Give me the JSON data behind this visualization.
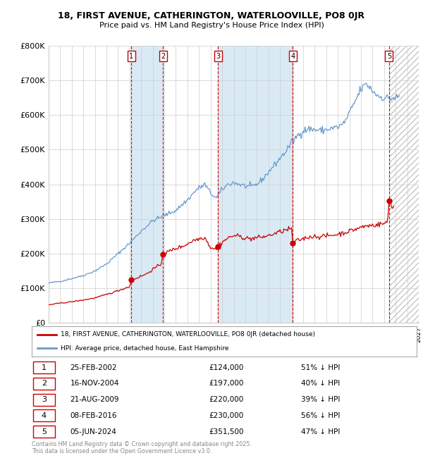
{
  "title_line1": "18, FIRST AVENUE, CATHERINGTON, WATERLOOVILLE, PO8 0JR",
  "title_line2": "Price paid vs. HM Land Registry's House Price Index (HPI)",
  "transactions": [
    {
      "num": 1,
      "date": "25-FEB-2002",
      "date_val": 2002.14,
      "price": 124000,
      "hpi_pct": "51% ↓ HPI"
    },
    {
      "num": 2,
      "date": "16-NOV-2004",
      "date_val": 2004.88,
      "price": 197000,
      "hpi_pct": "40% ↓ HPI"
    },
    {
      "num": 3,
      "date": "21-AUG-2009",
      "date_val": 2009.64,
      "price": 220000,
      "hpi_pct": "39% ↓ HPI"
    },
    {
      "num": 4,
      "date": "08-FEB-2016",
      "date_val": 2016.11,
      "price": 230000,
      "hpi_pct": "56% ↓ HPI"
    },
    {
      "num": 5,
      "date": "05-JUN-2024",
      "date_val": 2024.43,
      "price": 351500,
      "hpi_pct": "47% ↓ HPI"
    }
  ],
  "property_color": "#cc0000",
  "hpi_color": "#6699cc",
  "vline_color": "#cc0000",
  "shade_color": "#daeaf5",
  "xlabel": "",
  "ylabel": "",
  "ylim": [
    0,
    800000
  ],
  "xlim": [
    1995,
    2027
  ],
  "yticks": [
    0,
    100000,
    200000,
    300000,
    400000,
    500000,
    600000,
    700000,
    800000
  ],
  "ytick_labels": [
    "£0",
    "£100K",
    "£200K",
    "£300K",
    "£400K",
    "£500K",
    "£600K",
    "£700K",
    "£800K"
  ],
  "legend_property": "18, FIRST AVENUE, CATHERINGTON, WATERLOOVILLE, PO8 0JR (detached house)",
  "legend_hpi": "HPI: Average price, detached house, East Hampshire",
  "footnote": "Contains HM Land Registry data © Crown copyright and database right 2025.\nThis data is licensed under the Open Government Licence v3.0.",
  "grid_color": "#cccccc",
  "background_color": "#ffffff",
  "hpi_anchors": [
    [
      1995.0,
      115000
    ],
    [
      1996.0,
      120000
    ],
    [
      1997.0,
      128000
    ],
    [
      1998.0,
      137000
    ],
    [
      1999.0,
      150000
    ],
    [
      2000.0,
      170000
    ],
    [
      2001.0,
      200000
    ],
    [
      2002.0,
      230000
    ],
    [
      2003.0,
      265000
    ],
    [
      2004.0,
      295000
    ],
    [
      2005.0,
      310000
    ],
    [
      2006.0,
      325000
    ],
    [
      2007.0,
      355000
    ],
    [
      2007.8,
      385000
    ],
    [
      2008.5,
      400000
    ],
    [
      2009.0,
      375000
    ],
    [
      2009.5,
      360000
    ],
    [
      2010.0,
      385000
    ],
    [
      2010.5,
      400000
    ],
    [
      2011.0,
      405000
    ],
    [
      2012.0,
      395000
    ],
    [
      2012.5,
      393000
    ],
    [
      2013.0,
      400000
    ],
    [
      2013.5,
      415000
    ],
    [
      2014.0,
      435000
    ],
    [
      2014.5,
      455000
    ],
    [
      2015.0,
      475000
    ],
    [
      2015.5,
      495000
    ],
    [
      2016.0,
      520000
    ],
    [
      2016.5,
      540000
    ],
    [
      2017.0,
      555000
    ],
    [
      2017.5,
      560000
    ],
    [
      2018.0,
      558000
    ],
    [
      2018.5,
      555000
    ],
    [
      2019.0,
      558000
    ],
    [
      2019.5,
      562000
    ],
    [
      2020.0,
      565000
    ],
    [
      2020.5,
      575000
    ],
    [
      2021.0,
      605000
    ],
    [
      2021.5,
      640000
    ],
    [
      2022.0,
      675000
    ],
    [
      2022.5,
      690000
    ],
    [
      2023.0,
      670000
    ],
    [
      2023.5,
      655000
    ],
    [
      2024.0,
      650000
    ],
    [
      2024.5,
      648000
    ],
    [
      2025.0,
      650000
    ],
    [
      2025.5,
      652000
    ]
  ],
  "prop_anchors": [
    [
      1995.0,
      52000
    ],
    [
      1996.0,
      57000
    ],
    [
      1997.0,
      61000
    ],
    [
      1998.0,
      66000
    ],
    [
      1999.0,
      72000
    ],
    [
      2000.0,
      82000
    ],
    [
      2001.0,
      93000
    ],
    [
      2002.0,
      105000
    ],
    [
      2002.14,
      124000
    ],
    [
      2002.5,
      128000
    ],
    [
      2003.0,
      135000
    ],
    [
      2003.5,
      142000
    ],
    [
      2004.0,
      155000
    ],
    [
      2004.7,
      168000
    ],
    [
      2004.88,
      197000
    ],
    [
      2005.0,
      200000
    ],
    [
      2005.5,
      208000
    ],
    [
      2006.0,
      215000
    ],
    [
      2006.5,
      220000
    ],
    [
      2007.0,
      228000
    ],
    [
      2007.5,
      238000
    ],
    [
      2008.0,
      243000
    ],
    [
      2008.5,
      247000
    ],
    [
      2009.0,
      218000
    ],
    [
      2009.5,
      213000
    ],
    [
      2009.64,
      220000
    ],
    [
      2010.0,
      233000
    ],
    [
      2010.5,
      245000
    ],
    [
      2011.0,
      252000
    ],
    [
      2011.5,
      250000
    ],
    [
      2012.0,
      245000
    ],
    [
      2012.5,
      243000
    ],
    [
      2013.0,
      246000
    ],
    [
      2013.5,
      248000
    ],
    [
      2014.0,
      252000
    ],
    [
      2014.5,
      257000
    ],
    [
      2015.0,
      263000
    ],
    [
      2015.5,
      268000
    ],
    [
      2016.0,
      272000
    ],
    [
      2016.11,
      230000
    ],
    [
      2016.5,
      238000
    ],
    [
      2017.0,
      243000
    ],
    [
      2017.5,
      248000
    ],
    [
      2018.0,
      250000
    ],
    [
      2018.5,
      249000
    ],
    [
      2019.0,
      251000
    ],
    [
      2019.5,
      253000
    ],
    [
      2020.0,
      256000
    ],
    [
      2020.5,
      260000
    ],
    [
      2021.0,
      265000
    ],
    [
      2021.5,
      270000
    ],
    [
      2022.0,
      276000
    ],
    [
      2022.5,
      280000
    ],
    [
      2023.0,
      282000
    ],
    [
      2023.5,
      284000
    ],
    [
      2024.0,
      287000
    ],
    [
      2024.3,
      290000
    ],
    [
      2024.43,
      351500
    ],
    [
      2024.6,
      342000
    ],
    [
      2024.8,
      335000
    ],
    [
      2025.0,
      328000
    ]
  ]
}
